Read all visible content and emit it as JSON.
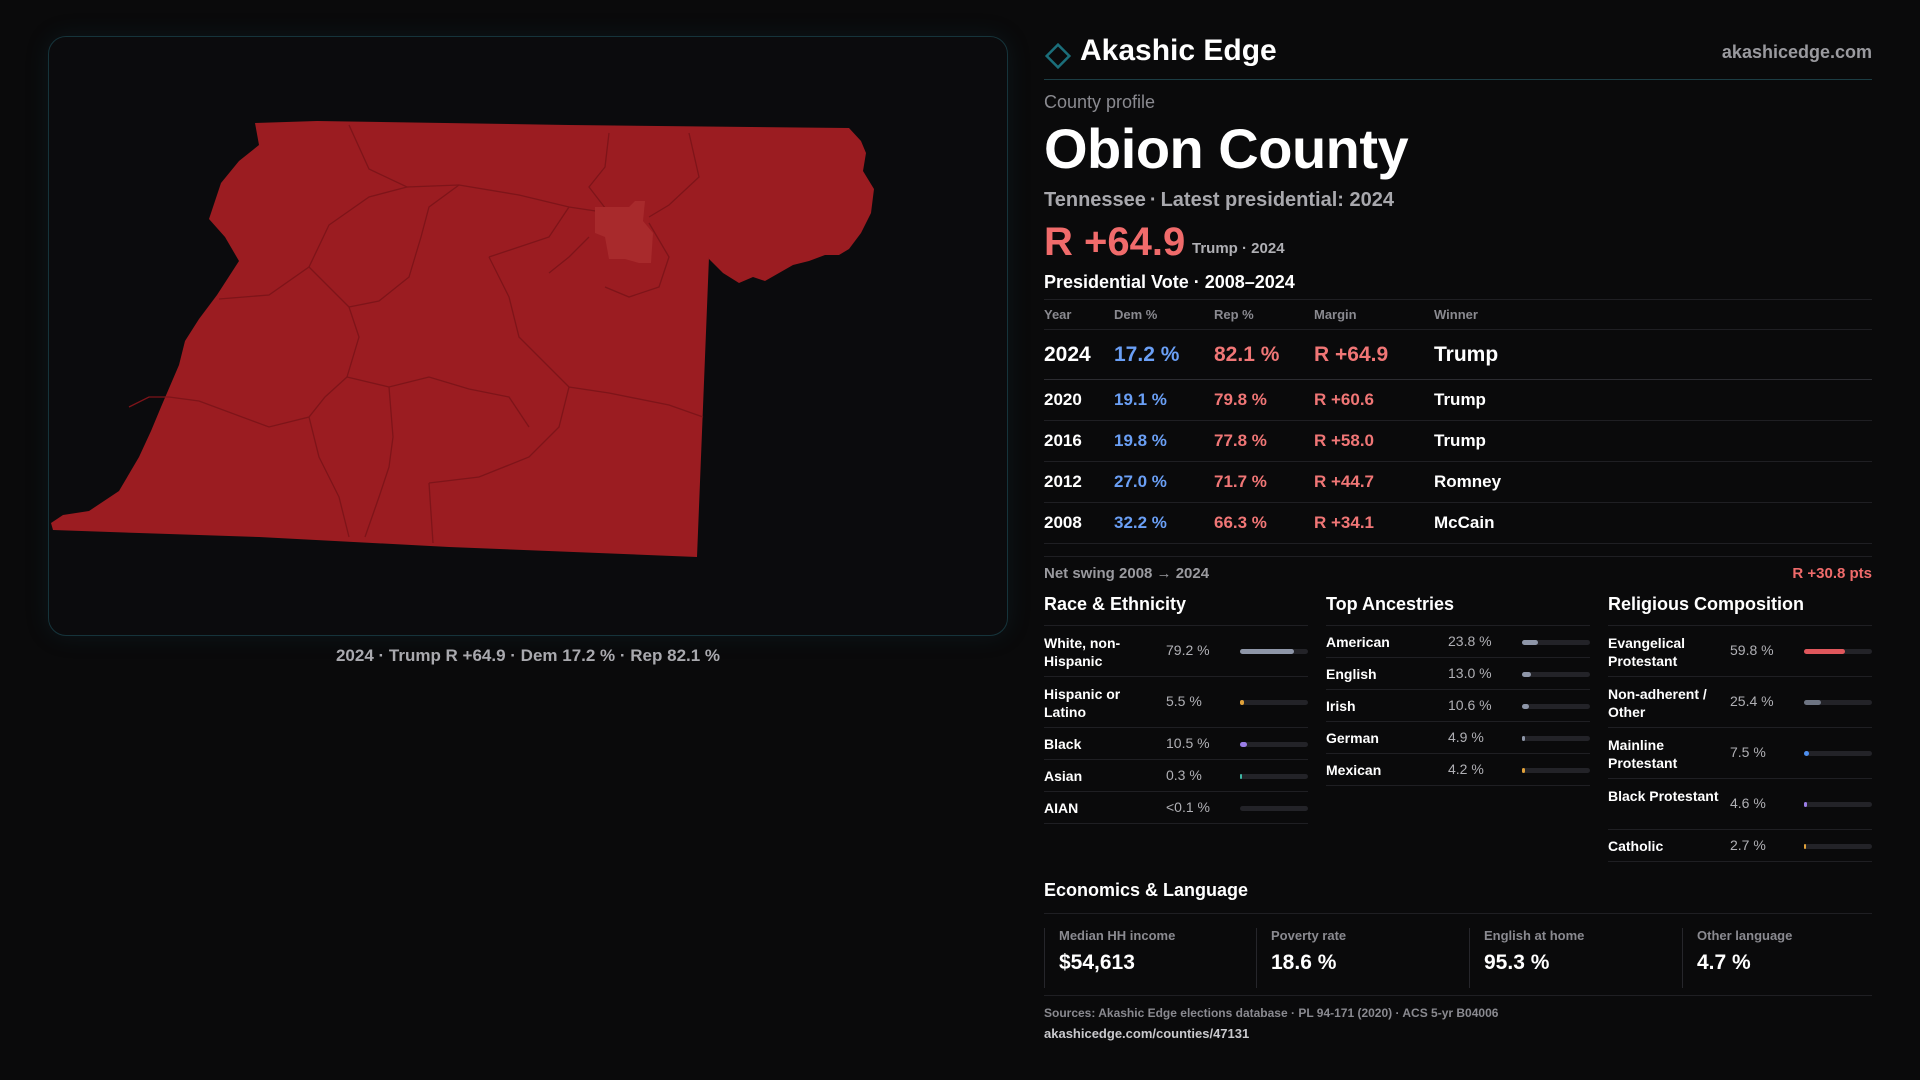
{
  "brand": {
    "name": "Akashic Edge",
    "url": "akashicedge.com",
    "accent": "#1b6e7a"
  },
  "profile": {
    "label": "County profile",
    "county": "Obion County",
    "state": "Tennessee",
    "latest": "Latest presidential: 2024",
    "margin": "R +64.9",
    "winner_line": "Trump · 2024"
  },
  "map": {
    "fill_color": "#9b1c21",
    "highlight_color": "#a82a2c",
    "caption": "2024 · Trump R +64.9 · Dem 17.2 % · Rep 82.1 %"
  },
  "vote_table": {
    "title": "Presidential Vote · 2008–2024",
    "headers": {
      "year": "Year",
      "dem": "Dem %",
      "rep": "Rep %",
      "margin": "Margin",
      "winner": "Winner"
    },
    "rows": [
      {
        "year": "2024",
        "dem": "17.2 %",
        "rep": "82.1 %",
        "margin": "R +64.9",
        "winner": "Trump"
      },
      {
        "year": "2020",
        "dem": "19.1 %",
        "rep": "79.8 %",
        "margin": "R +60.6",
        "winner": "Trump"
      },
      {
        "year": "2016",
        "dem": "19.8 %",
        "rep": "77.8 %",
        "margin": "R +58.0",
        "winner": "Trump"
      },
      {
        "year": "2012",
        "dem": "27.0 %",
        "rep": "71.7 %",
        "margin": "R +44.7",
        "winner": "Romney"
      },
      {
        "year": "2008",
        "dem": "32.2 %",
        "rep": "66.3 %",
        "margin": "R +34.1",
        "winner": "McCain"
      }
    ],
    "swing_label": "Net swing 2008 → 2024",
    "swing_value": "R +30.8 pts"
  },
  "race": {
    "title": "Race & Ethnicity",
    "items": [
      {
        "label": "White, non-Hispanic",
        "pct": "79.2 %",
        "value": 79.2,
        "color": "#8e96a8"
      },
      {
        "label": "Hispanic or Latino",
        "pct": "5.5 %",
        "value": 5.5,
        "color": "#e0a13a"
      },
      {
        "label": "Black",
        "pct": "10.5 %",
        "value": 10.5,
        "color": "#9a7de6"
      },
      {
        "label": "Asian",
        "pct": "0.3 %",
        "value": 0.3,
        "color": "#3fb7a4"
      },
      {
        "label": "AIAN",
        "pct": "<0.1 %",
        "value": 0.0,
        "color": "#8e96a8"
      }
    ]
  },
  "ancestry": {
    "title": "Top Ancestries",
    "items": [
      {
        "label": "American",
        "pct": "23.8 %",
        "value": 23.8,
        "color": "#8e96a8"
      },
      {
        "label": "English",
        "pct": "13.0 %",
        "value": 13.0,
        "color": "#8e96a8"
      },
      {
        "label": "Irish",
        "pct": "10.6 %",
        "value": 10.6,
        "color": "#8e96a8"
      },
      {
        "label": "German",
        "pct": "4.9 %",
        "value": 4.9,
        "color": "#8e96a8"
      },
      {
        "label": "Mexican",
        "pct": "4.2 %",
        "value": 4.2,
        "color": "#e0a13a"
      }
    ]
  },
  "religion": {
    "title": "Religious Composition",
    "items": [
      {
        "label": "Evangelical Protestant",
        "pct": "59.8 %",
        "value": 59.8,
        "color": "#e0575c"
      },
      {
        "label": "Non-adherent / Other",
        "pct": "25.4 %",
        "value": 25.4,
        "color": "#6d7482"
      },
      {
        "label": "Mainline Protestant",
        "pct": "7.5 %",
        "value": 7.5,
        "color": "#4d8ff0"
      },
      {
        "label": "Black Protestant",
        "pct": "4.6 %",
        "value": 4.6,
        "color": "#9a7de6"
      },
      {
        "label": "Catholic",
        "pct": "2.7 %",
        "value": 2.7,
        "color": "#e0a13a"
      }
    ]
  },
  "economics": {
    "title": "Economics & Language",
    "cards": [
      {
        "label": "Median HH income",
        "value": "$54,613"
      },
      {
        "label": "Poverty rate",
        "value": "18.6 %"
      },
      {
        "label": "English at home",
        "value": "95.3 %"
      },
      {
        "label": "Other language",
        "value": "4.7 %"
      }
    ]
  },
  "sources": {
    "text": "Sources: Akashic Edge elections database · PL 94-171 (2020) · ACS 5-yr B04006",
    "url": "akashicedge.com/counties/47131"
  }
}
